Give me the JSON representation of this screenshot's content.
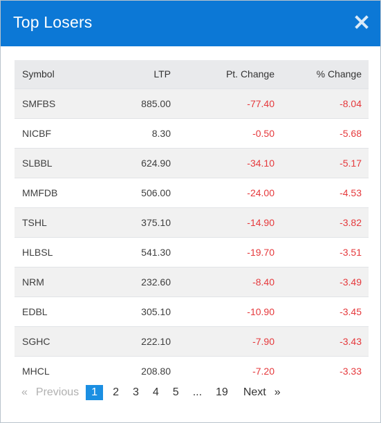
{
  "modal": {
    "title": "Top Losers",
    "close_icon": "close-icon"
  },
  "table": {
    "headers": {
      "symbol": "Symbol",
      "ltp": "LTP",
      "pt_change": "Pt. Change",
      "pct_change": "% Change"
    },
    "rows": [
      {
        "symbol": "SMFBS",
        "ltp": "885.00",
        "pt_change": "-77.40",
        "pct_change": "-8.04"
      },
      {
        "symbol": "NICBF",
        "ltp": "8.30",
        "pt_change": "-0.50",
        "pct_change": "-5.68"
      },
      {
        "symbol": "SLBBL",
        "ltp": "624.90",
        "pt_change": "-34.10",
        "pct_change": "-5.17"
      },
      {
        "symbol": "MMFDB",
        "ltp": "506.00",
        "pt_change": "-24.00",
        "pct_change": "-4.53"
      },
      {
        "symbol": "TSHL",
        "ltp": "375.10",
        "pt_change": "-14.90",
        "pct_change": "-3.82"
      },
      {
        "symbol": "HLBSL",
        "ltp": "541.30",
        "pt_change": "-19.70",
        "pct_change": "-3.51"
      },
      {
        "symbol": "NRM",
        "ltp": "232.60",
        "pt_change": "-8.40",
        "pct_change": "-3.49"
      },
      {
        "symbol": "EDBL",
        "ltp": "305.10",
        "pt_change": "-10.90",
        "pct_change": "-3.45"
      },
      {
        "symbol": "SGHC",
        "ltp": "222.10",
        "pt_change": "-7.90",
        "pct_change": "-3.43"
      },
      {
        "symbol": "MHCL",
        "ltp": "208.80",
        "pt_change": "-7.20",
        "pct_change": "-3.33"
      }
    ]
  },
  "pagination": {
    "laquo": "«",
    "previous": "Previous",
    "pages": [
      "1",
      "2",
      "3",
      "4",
      "5",
      "...",
      "19"
    ],
    "active_page": "1",
    "next": "Next",
    "raquo": "»"
  },
  "colors": {
    "header_bg": "#0c78d6",
    "negative": "#e5383b",
    "active_page": "#1b8fe2"
  }
}
